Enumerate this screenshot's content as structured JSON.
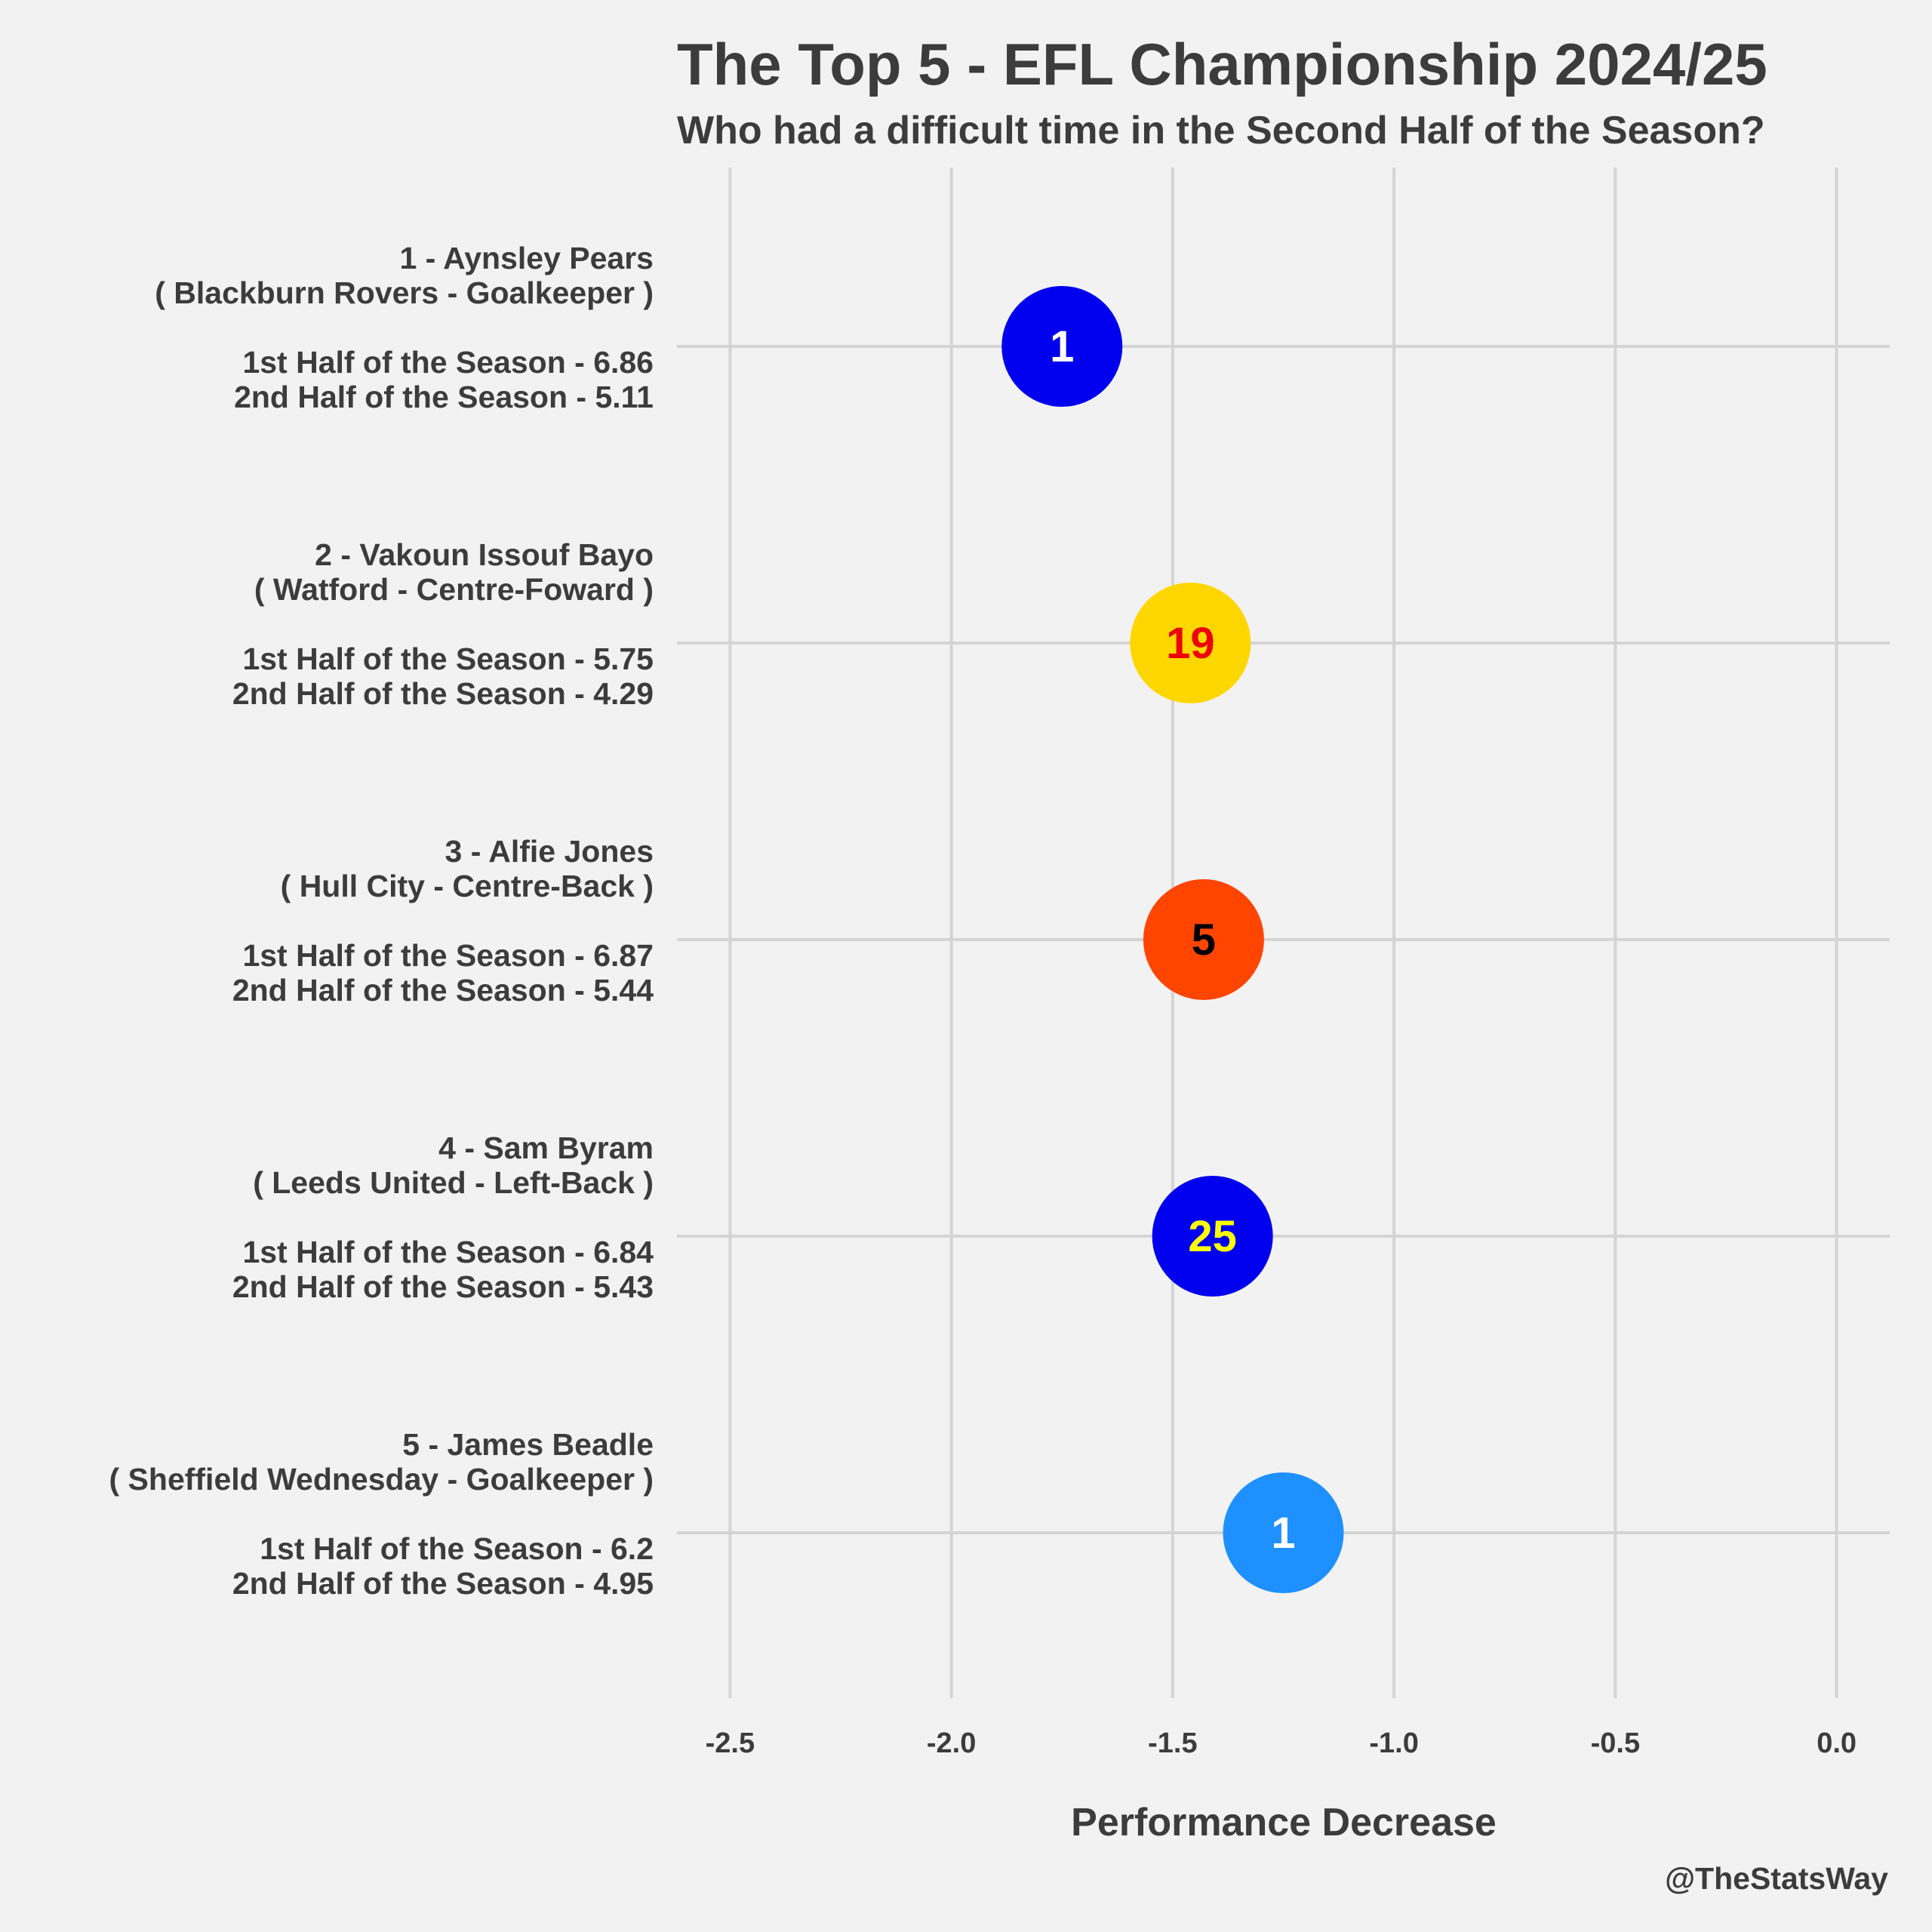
{
  "chart_data": {
    "type": "scatter",
    "title": "The Top 5 - EFL Championship 2024/25",
    "subtitle": "Who had a difficult time in the Second Half of the Season?",
    "xlabel": "Performance Decrease",
    "caption": "@TheStatsWay",
    "xlim": [
      -2.62,
      0.12
    ],
    "xticks": [
      -2.5,
      -2.0,
      -1.5,
      -1.0,
      -0.5,
      0.0
    ],
    "xtick_labels": [
      "-2.5",
      "-2.0",
      "-1.5",
      "-1.0",
      "-0.5",
      "0.0"
    ],
    "grid": true,
    "points": [
      {
        "rank": 1,
        "label_lines": [
          "1 - Aynsley Pears",
          "( Blackburn Rovers - Goalkeeper )",
          "",
          "1st Half of the Season - 6.86",
          "2nd Half of the Season - 5.11"
        ],
        "x": -1.75,
        "marker_text": "1",
        "fill": "#0000ee",
        "text_color": "#ffffff"
      },
      {
        "rank": 2,
        "label_lines": [
          "2 - Vakoun Issouf Bayo",
          "( Watford - Centre-Foward )",
          "",
          "1st Half of the Season - 5.75",
          "2nd Half of the Season - 4.29"
        ],
        "x": -1.46,
        "marker_text": "19",
        "fill": "#ffd700",
        "text_color": "#ee0000"
      },
      {
        "rank": 3,
        "label_lines": [
          "3 - Alfie Jones",
          "( Hull City - Centre-Back )",
          "",
          "1st Half of the Season - 6.87",
          "2nd Half of the Season - 5.44"
        ],
        "x": -1.43,
        "marker_text": "5",
        "fill": "#ff4500",
        "text_color": "#000000"
      },
      {
        "rank": 4,
        "label_lines": [
          "4 - Sam Byram",
          "( Leeds United - Left-Back )",
          "",
          "1st Half of the Season - 6.84",
          "2nd Half of the Season - 5.43"
        ],
        "x": -1.41,
        "marker_text": "25",
        "fill": "#0000ee",
        "text_color": "#ffff00"
      },
      {
        "rank": 5,
        "label_lines": [
          "5 - James Beadle",
          "( Sheffield Wednesday - Goalkeeper )",
          "",
          "1st Half of the Season - 6.2",
          "2nd Half of the Season - 4.95"
        ],
        "x": -1.25,
        "marker_text": "1",
        "fill": "#1e90ff",
        "text_color": "#ffffff"
      }
    ]
  }
}
